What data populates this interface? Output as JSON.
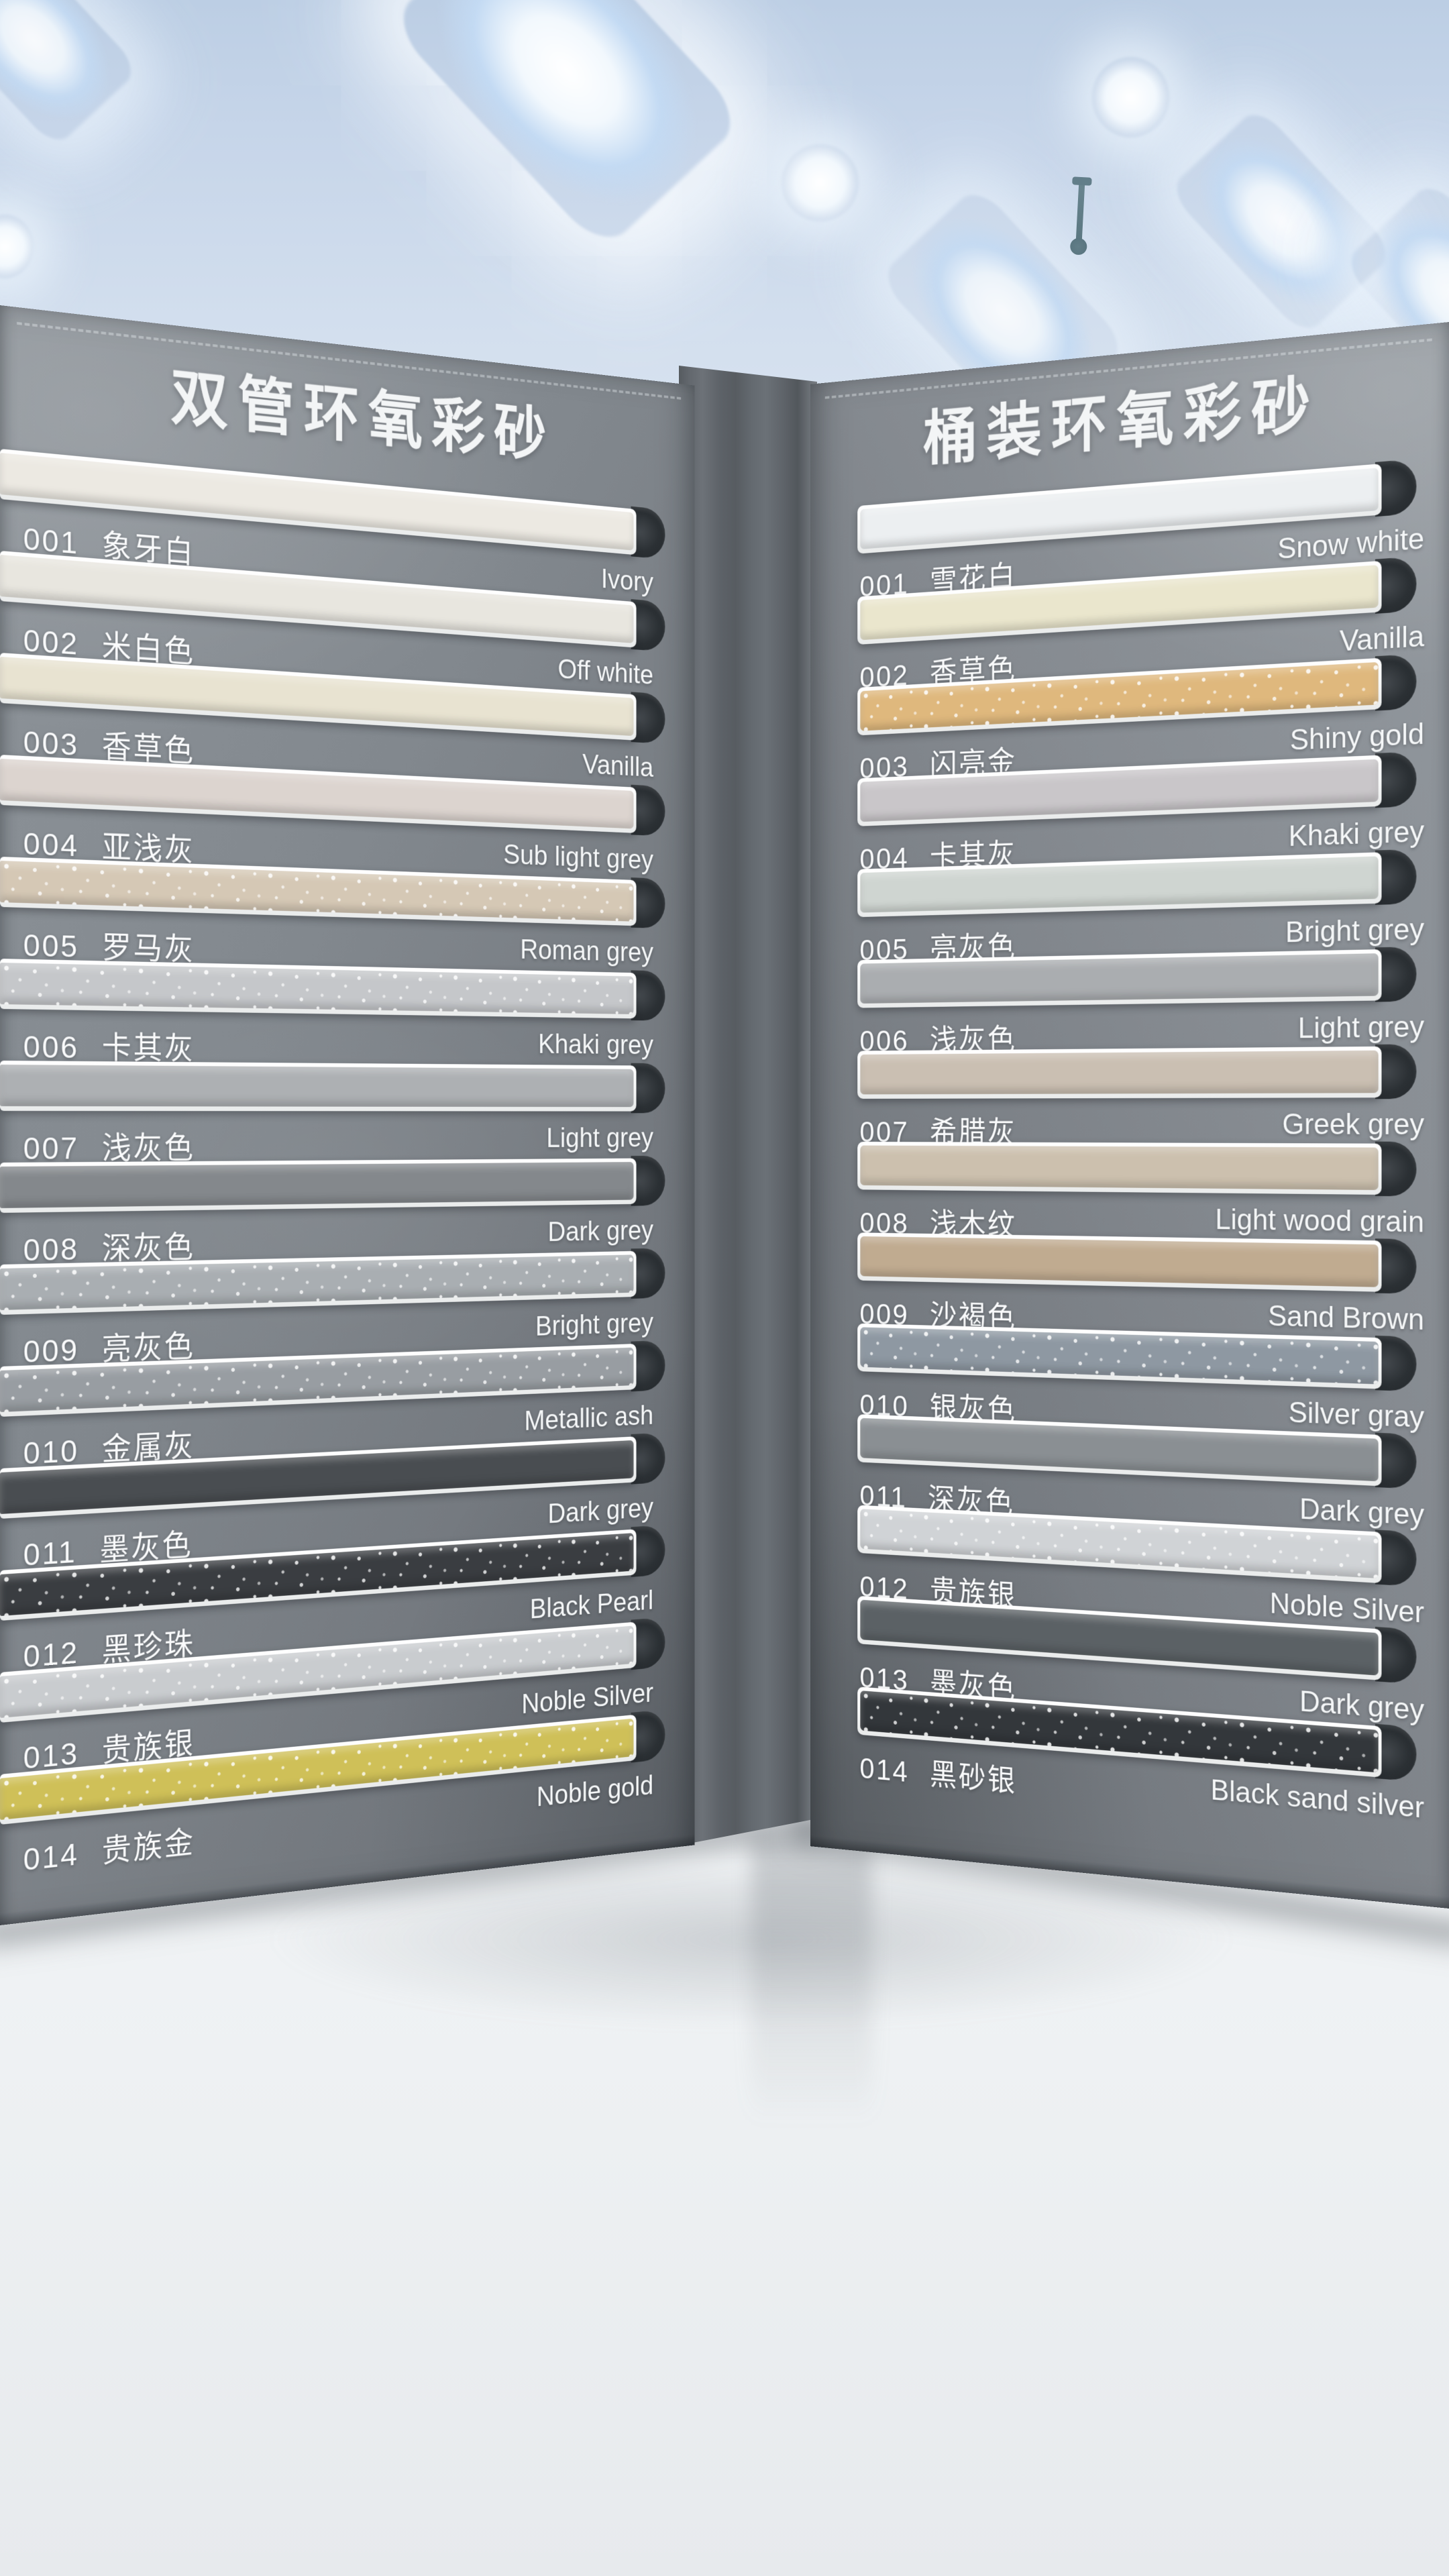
{
  "book": {
    "left_panel": {
      "title": "双管环氧彩砂",
      "items": [
        {
          "code": "001",
          "cn": "象牙白",
          "en": "Ivory",
          "color": "#ece9e2",
          "sparkle": false
        },
        {
          "code": "002",
          "cn": "米白色",
          "en": "Off white",
          "color": "#e8e6df",
          "sparkle": false
        },
        {
          "code": "003",
          "cn": "香草色",
          "en": "Vanilla",
          "color": "#e8e3d1",
          "sparkle": false
        },
        {
          "code": "004",
          "cn": "亚浅灰",
          "en": "Sub light grey",
          "color": "#dcd4cf",
          "sparkle": false
        },
        {
          "code": "005",
          "cn": "罗马灰",
          "en": "Roman grey",
          "color": "#d5c8b5",
          "sparkle": true
        },
        {
          "code": "006",
          "cn": "卡其灰",
          "en": "Khaki grey",
          "color": "#c5c7ca",
          "sparkle": true
        },
        {
          "code": "007",
          "cn": "浅灰色",
          "en": "Light grey",
          "color": "#adb0b3",
          "sparkle": false
        },
        {
          "code": "008",
          "cn": "深灰色",
          "en": "Dark grey",
          "color": "#84888c",
          "sparkle": false
        },
        {
          "code": "009",
          "cn": "亮灰色",
          "en": "Bright grey",
          "color": "#a9aeb2",
          "sparkle": true
        },
        {
          "code": "010",
          "cn": "金属灰",
          "en": "Metallic ash",
          "color": "#989da2",
          "sparkle": true
        },
        {
          "code": "011",
          "cn": "墨灰色",
          "en": "Dark grey",
          "color": "#494d51",
          "sparkle": false
        },
        {
          "code": "012",
          "cn": "黑珍珠",
          "en": "Black Pearl",
          "color": "#3a3d41",
          "sparkle": true
        },
        {
          "code": "013",
          "cn": "贵族银",
          "en": "Noble Silver",
          "color": "#c9cccf",
          "sparkle": true
        },
        {
          "code": "014",
          "cn": "贵族金",
          "en": "Noble gold",
          "color": "#cfc058",
          "sparkle": true
        }
      ]
    },
    "right_panel": {
      "title": "桶装环氧彩砂",
      "items": [
        {
          "code": "001",
          "cn": "雪花白",
          "en": "Snow white",
          "color": "#eceff1",
          "sparkle": false
        },
        {
          "code": "002",
          "cn": "香草色",
          "en": "Vanilla",
          "color": "#eae6cd",
          "sparkle": false
        },
        {
          "code": "003",
          "cn": "闪亮金",
          "en": "Shiny gold",
          "color": "#dfb87d",
          "sparkle": true
        },
        {
          "code": "004",
          "cn": "卡其灰",
          "en": "Khaki grey",
          "color": "#c9c6c9",
          "sparkle": false
        },
        {
          "code": "005",
          "cn": "亮灰色",
          "en": "Bright grey",
          "color": "#cfd5d1",
          "sparkle": false
        },
        {
          "code": "006",
          "cn": "浅灰色",
          "en": "Light grey",
          "color": "#aaadb0",
          "sparkle": false
        },
        {
          "code": "007",
          "cn": "希腊灰",
          "en": "Greek grey",
          "color": "#cabfb2",
          "sparkle": false
        },
        {
          "code": "008",
          "cn": "浅木纹",
          "en": "Light wood grain",
          "color": "#ccc0ae",
          "sparkle": false
        },
        {
          "code": "009",
          "cn": "沙褐色",
          "en": "Sand Brown",
          "color": "#c0ab90",
          "sparkle": false
        },
        {
          "code": "010",
          "cn": "银灰色",
          "en": "Silver gray",
          "color": "#8e98a2",
          "sparkle": true
        },
        {
          "code": "011",
          "cn": "深灰色",
          "en": "Dark grey",
          "color": "#8a8f93",
          "sparkle": false
        },
        {
          "code": "012",
          "cn": "贵族银",
          "en": "Noble Silver",
          "color": "#d0d3d6",
          "sparkle": true
        },
        {
          "code": "013",
          "cn": "墨灰色",
          "en": "Dark grey",
          "color": "#5b6165",
          "sparkle": false
        },
        {
          "code": "014",
          "cn": "黑砂银",
          "en": "Black sand silver",
          "color": "#33373b",
          "sparkle": true
        }
      ]
    }
  },
  "palette": {
    "ceiling_top": "#bccee4",
    "light_panel_glow": "#f2f8fd",
    "light_panel_blue": "#c3daf3",
    "leather_left": "#7e848a",
    "leather_right": "#7d8288",
    "spine": "#5b6065",
    "slot_edge": "#f7f8f8",
    "notch": "#2b3034",
    "table": "#eef0f2",
    "label_text": "#fafbfc"
  }
}
